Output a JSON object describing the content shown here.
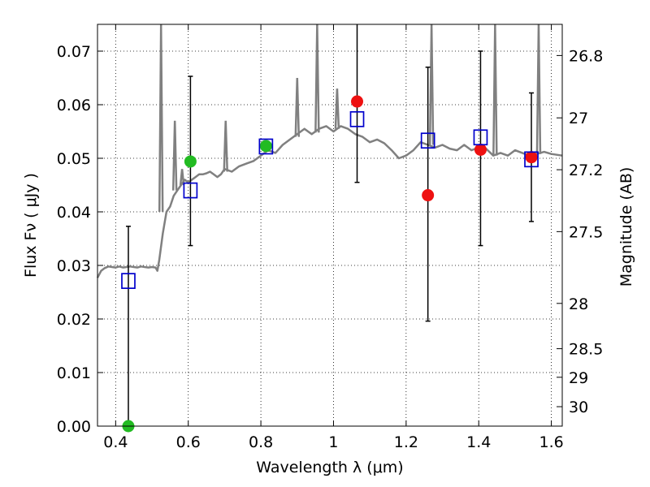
{
  "chart_data": {
    "type": "scatter",
    "xlabel": "Wavelength  λ (μm)",
    "ylabel": "Flux  Fν  ( μJy )",
    "ylabel_right": "Magnitude (AB)",
    "xlim": [
      0.35,
      1.63
    ],
    "ylim": [
      0.0,
      0.075
    ],
    "grid": true,
    "x_ticks": [
      0.4,
      0.6,
      0.8,
      1.0,
      1.2,
      1.4,
      1.6
    ],
    "x_tick_labels": [
      "0.4",
      "0.6",
      "0.8",
      "1",
      "1.2",
      "1.4",
      "1.6"
    ],
    "y_ticks": [
      0.0,
      0.01,
      0.02,
      0.03,
      0.04,
      0.05,
      0.06,
      0.07
    ],
    "y_tick_labels": [
      "0.00",
      "0.01",
      "0.02",
      "0.03",
      "0.04",
      "0.05",
      "0.06",
      "0.07"
    ],
    "mag_ticks": [
      26.8,
      27,
      27.2,
      27.5,
      28,
      28.5,
      29,
      30
    ],
    "mag_tick_labels": [
      "26.8",
      "27",
      "27.2",
      "27.5",
      "28",
      "28.5",
      "29",
      "30"
    ],
    "colors": {
      "template": "#808080",
      "observed_green": "#22bb22",
      "observed_red": "#ee1111",
      "model": "#0000cc",
      "errorbar": "#000000"
    },
    "template_spectrum": {
      "x": [
        0.35,
        0.36,
        0.37,
        0.38,
        0.39,
        0.4,
        0.41,
        0.42,
        0.43,
        0.44,
        0.45,
        0.46,
        0.47,
        0.48,
        0.49,
        0.5,
        0.51,
        0.515,
        0.52,
        0.53,
        0.54,
        0.55,
        0.56,
        0.57,
        0.58,
        0.59,
        0.6,
        0.61,
        0.62,
        0.63,
        0.64,
        0.65,
        0.66,
        0.67,
        0.68,
        0.69,
        0.7,
        0.72,
        0.74,
        0.76,
        0.78,
        0.8,
        0.82,
        0.84,
        0.86,
        0.88,
        0.9,
        0.92,
        0.94,
        0.96,
        0.98,
        1.0,
        1.02,
        1.04,
        1.06,
        1.08,
        1.1,
        1.12,
        1.14,
        1.16,
        1.18,
        1.2,
        1.22,
        1.24,
        1.26,
        1.28,
        1.3,
        1.32,
        1.34,
        1.36,
        1.38,
        1.4,
        1.42,
        1.44,
        1.46,
        1.48,
        1.5,
        1.52,
        1.54,
        1.56,
        1.58,
        1.6,
        1.63
      ],
      "y": [
        0.0277,
        0.029,
        0.0295,
        0.0298,
        0.0297,
        0.0296,
        0.0298,
        0.0296,
        0.0297,
        0.0298,
        0.0297,
        0.0296,
        0.0298,
        0.0297,
        0.0296,
        0.0297,
        0.0296,
        0.029,
        0.031,
        0.036,
        0.04,
        0.041,
        0.043,
        0.044,
        0.045,
        0.046,
        0.0455,
        0.046,
        0.0465,
        0.047,
        0.047,
        0.0472,
        0.0475,
        0.047,
        0.0465,
        0.047,
        0.048,
        0.0475,
        0.0485,
        0.049,
        0.0495,
        0.0505,
        0.0515,
        0.051,
        0.0525,
        0.0535,
        0.0545,
        0.0555,
        0.0545,
        0.0555,
        0.056,
        0.055,
        0.056,
        0.0555,
        0.0545,
        0.054,
        0.053,
        0.0535,
        0.0528,
        0.0515,
        0.05,
        0.0505,
        0.0515,
        0.053,
        0.0525,
        0.052,
        0.0525,
        0.0518,
        0.0515,
        0.0525,
        0.0515,
        0.052,
        0.0518,
        0.0505,
        0.051,
        0.0505,
        0.0515,
        0.051,
        0.0505,
        0.0508,
        0.0512,
        0.0508,
        0.0505
      ]
    },
    "emission_lines": [
      {
        "x": 0.525,
        "base": 0.04,
        "peak": 0.075
      },
      {
        "x": 0.563,
        "base": 0.044,
        "peak": 0.057
      },
      {
        "x": 0.583,
        "base": 0.045,
        "peak": 0.048
      },
      {
        "x": 0.703,
        "base": 0.0475,
        "peak": 0.057
      },
      {
        "x": 0.9,
        "base": 0.054,
        "peak": 0.065
      },
      {
        "x": 0.955,
        "base": 0.0548,
        "peak": 0.075
      },
      {
        "x": 1.01,
        "base": 0.0555,
        "peak": 0.063
      },
      {
        "x": 1.27,
        "base": 0.0525,
        "peak": 0.075
      },
      {
        "x": 1.445,
        "base": 0.0505,
        "peak": 0.075
      },
      {
        "x": 1.565,
        "base": 0.0508,
        "peak": 0.075
      }
    ],
    "observed": {
      "x": [
        0.435,
        0.606,
        0.814,
        1.065,
        1.26,
        1.405,
        1.545
      ],
      "y": [
        0.0,
        0.0494,
        0.0523,
        0.0606,
        0.0431,
        0.0516,
        0.0502
      ],
      "colors": [
        "green",
        "green",
        "green",
        "red",
        "red",
        "red",
        "red"
      ]
    },
    "errorbars": {
      "x": [
        0.435,
        0.606,
        1.065,
        1.26,
        1.405,
        1.545
      ],
      "low": [
        0.0,
        0.0337,
        0.0455,
        0.0196,
        0.0337,
        0.0382
      ],
      "high": [
        0.0373,
        0.0653,
        0.075,
        0.067,
        0.07,
        0.0622
      ]
    },
    "model": {
      "x": [
        0.435,
        0.606,
        0.814,
        1.065,
        1.26,
        1.405,
        1.545
      ],
      "y": [
        0.0271,
        0.044,
        0.0522,
        0.0573,
        0.0533,
        0.0539,
        0.0498
      ]
    }
  }
}
